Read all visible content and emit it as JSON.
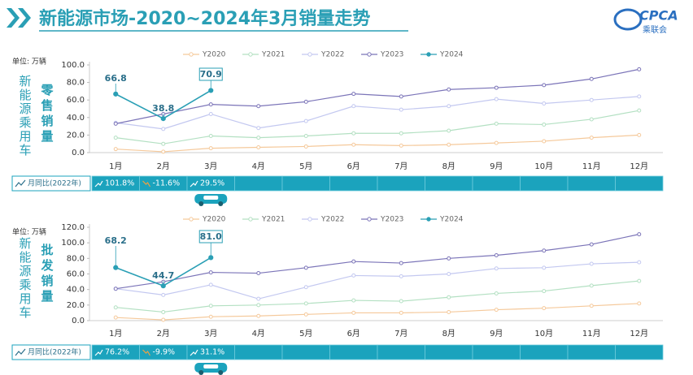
{
  "header": {
    "title": "新能源市场-2020~2024年3月销量走势",
    "logo": "CPCA",
    "logo_sub": "乘联会"
  },
  "chart_data": [
    {
      "type": "line",
      "unit": "单位: 万辆",
      "y_label_main": "新能源乘用车",
      "y_label": "零售销量",
      "categories": [
        "1月",
        "2月",
        "3月",
        "4月",
        "5月",
        "6月",
        "7月",
        "8月",
        "9月",
        "10月",
        "11月",
        "12月"
      ],
      "ylim": [
        0,
        100
      ],
      "yticks": [
        {
          "value": 0,
          "label": "0.0"
        },
        {
          "value": 20,
          "label": "20.0"
        },
        {
          "value": 40,
          "label": "40.0"
        },
        {
          "value": 60,
          "label": "60.0"
        },
        {
          "value": 80,
          "label": "80.0"
        },
        {
          "value": 100,
          "label": "100.0"
        }
      ],
      "series": [
        {
          "name": "Y2020",
          "color": "#f5c99b",
          "values": [
            4,
            1,
            5,
            6,
            7,
            9,
            8,
            9,
            11,
            13,
            17,
            20
          ]
        },
        {
          "name": "Y2021",
          "color": "#b3e0c2",
          "values": [
            17,
            10,
            19,
            17,
            19,
            22,
            22,
            25,
            33,
            32,
            38,
            48
          ]
        },
        {
          "name": "Y2022",
          "color": "#c3c8f0",
          "values": [
            34,
            27,
            44,
            28,
            36,
            53,
            49,
            53,
            61,
            56,
            60,
            64
          ]
        },
        {
          "name": "Y2023",
          "color": "#7b74b8",
          "values": [
            33,
            44,
            55,
            53,
            58,
            67,
            64,
            72,
            74,
            77,
            84,
            95
          ]
        },
        {
          "name": "Y2024",
          "color": "#2a9fb5",
          "values": [
            66.8,
            38.8,
            70.9,
            null,
            null,
            null,
            null,
            null,
            null,
            null,
            null,
            null
          ],
          "value_labels": [
            "66.8",
            "38.8",
            "70.9",
            null,
            null,
            null,
            null,
            null,
            null,
            null,
            null,
            null
          ]
        }
      ],
      "yoy": {
        "label": "月同比(2022年)",
        "values": [
          101.8,
          -11.6,
          29.5
        ],
        "value_labels": [
          "101.8%",
          "-11.6%",
          "29.5%"
        ]
      }
    },
    {
      "type": "line",
      "unit": "单位: 万辆",
      "y_label_main": "新能源乘用车",
      "y_label": "批发销量",
      "categories": [
        "1月",
        "2月",
        "3月",
        "4月",
        "5月",
        "6月",
        "7月",
        "8月",
        "9月",
        "10月",
        "11月",
        "12月"
      ],
      "ylim": [
        0,
        120
      ],
      "yticks": [
        {
          "value": 0,
          "label": "0.0"
        },
        {
          "value": 20,
          "label": "20.0"
        },
        {
          "value": 40,
          "label": "40.0"
        },
        {
          "value": 60,
          "label": "60.0"
        },
        {
          "value": 80,
          "label": "80.0"
        },
        {
          "value": 100,
          "label": "100.0"
        },
        {
          "value": 120,
          "label": "120.0"
        }
      ],
      "series": [
        {
          "name": "Y2020",
          "color": "#f5c99b",
          "values": [
            4,
            1,
            5,
            6,
            8,
            10,
            10,
            11,
            14,
            16,
            19,
            22
          ]
        },
        {
          "name": "Y2021",
          "color": "#b3e0c2",
          "values": [
            17,
            11,
            19,
            20,
            22,
            26,
            25,
            30,
            35,
            38,
            45,
            51
          ]
        },
        {
          "name": "Y2022",
          "color": "#c3c8f0",
          "values": [
            41,
            33,
            46,
            28,
            43,
            58,
            57,
            60,
            67,
            68,
            73,
            75
          ]
        },
        {
          "name": "Y2023",
          "color": "#7b74b8",
          "values": [
            41,
            50,
            62,
            61,
            68,
            76,
            74,
            80,
            84,
            90,
            98,
            111
          ]
        },
        {
          "name": "Y2024",
          "color": "#2a9fb5",
          "values": [
            68.2,
            44.7,
            81.0,
            null,
            null,
            null,
            null,
            null,
            null,
            null,
            null,
            null
          ],
          "value_labels": [
            "68.2",
            "44.7",
            "81.0",
            null,
            null,
            null,
            null,
            null,
            null,
            null,
            null,
            null
          ]
        }
      ],
      "yoy": {
        "label": "月同比(2022年)",
        "values": [
          76.2,
          -9.9,
          31.1
        ],
        "value_labels": [
          "76.2%",
          "-9.9%",
          "31.1%"
        ]
      }
    }
  ]
}
